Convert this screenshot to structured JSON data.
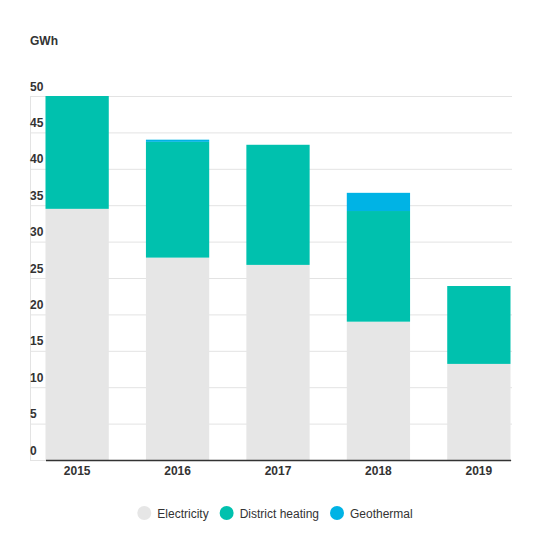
{
  "chart_data": {
    "type": "bar",
    "stacked": true,
    "grid": true,
    "legend": "bottom",
    "y_label": "GWh",
    "categories": [
      "2015",
      "2016",
      "2017",
      "2018",
      "2019"
    ],
    "series": [
      {
        "name": "Electricity",
        "color": "#e6e6e6",
        "values": [
          34.5,
          27.8,
          26.8,
          19.0,
          13.2
        ]
      },
      {
        "name": "District heating",
        "color": "#00c1ae",
        "values": [
          15.5,
          15.9,
          16.5,
          15.2,
          10.7
        ]
      },
      {
        "name": "Geothermal",
        "color": "#00b3e5",
        "values": [
          0,
          0.3,
          0,
          2.5,
          0
        ]
      }
    ],
    "ylim": [
      0,
      50
    ],
    "yticks": [
      0,
      5,
      10,
      15,
      20,
      25,
      30,
      35,
      40,
      45,
      50
    ]
  }
}
